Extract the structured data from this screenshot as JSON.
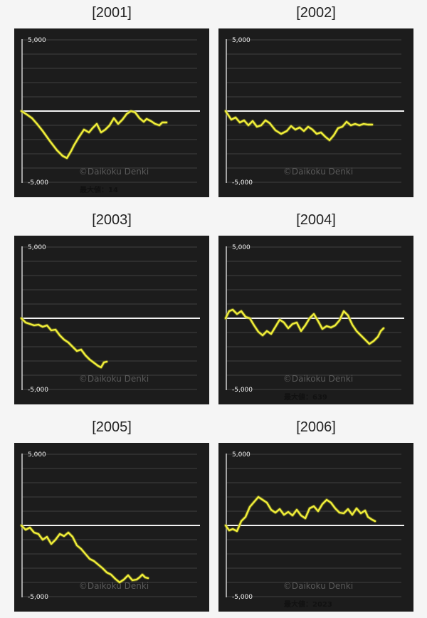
{
  "charts": [
    {
      "title": "[2001]",
      "ymax_label": "5,000",
      "ymin_label": "-5,000",
      "watermark": "©Daikoku Denki",
      "max_value_label": "最大値：14",
      "chart_data": {
        "type": "line",
        "ylim": [
          -5000,
          5000
        ],
        "baseline": 0,
        "x": [
          0,
          8,
          15,
          22,
          30,
          40,
          50,
          58,
          64,
          70,
          74,
          80,
          88,
          95,
          100,
          106,
          112,
          118,
          124,
          130,
          136,
          142,
          148,
          154,
          160,
          166,
          172,
          176,
          182,
          188,
          194,
          198,
          204
        ],
        "values": [
          0,
          -250,
          -500,
          -900,
          -1400,
          -2100,
          -2750,
          -3150,
          -3300,
          -2800,
          -2400,
          -1900,
          -1300,
          -1500,
          -1200,
          -900,
          -1500,
          -1300,
          -1000,
          -500,
          -900,
          -600,
          -200,
          0,
          -100,
          -500,
          -750,
          -550,
          -700,
          -900,
          -1000,
          -800,
          -800
        ]
      }
    },
    {
      "title": "[2002]",
      "ymax_label": "5,000",
      "ymin_label": "-5,000",
      "watermark": "©Daikoku Denki",
      "max_value_label": "",
      "chart_data": {
        "type": "line",
        "ylim": [
          -5000,
          5000
        ],
        "baseline": 0,
        "x": [
          0,
          8,
          14,
          20,
          26,
          32,
          38,
          44,
          50,
          56,
          62,
          70,
          78,
          86,
          92,
          98,
          104,
          110,
          116,
          122,
          128,
          134,
          140,
          146,
          152,
          158,
          164,
          170,
          176,
          182,
          188,
          194,
          200,
          206
        ],
        "values": [
          0,
          -600,
          -450,
          -800,
          -650,
          -1000,
          -700,
          -1100,
          -1000,
          -650,
          -850,
          -1350,
          -1600,
          -1400,
          -1050,
          -1300,
          -1150,
          -1400,
          -1100,
          -1300,
          -1600,
          -1500,
          -1800,
          -2050,
          -1700,
          -1200,
          -1100,
          -750,
          -1000,
          -900,
          -1000,
          -900,
          -950,
          -950
        ]
      }
    },
    {
      "title": "[2003]",
      "ymax_label": "5,000",
      "ymin_label": "-5,000",
      "watermark": "©Daikoku Denki",
      "max_value_label": "",
      "chart_data": {
        "type": "line",
        "ylim": [
          -5000,
          5000
        ],
        "baseline": 0,
        "x": [
          0,
          6,
          12,
          18,
          24,
          30,
          36,
          42,
          48,
          54,
          60,
          66,
          72,
          78,
          84,
          90,
          96,
          100,
          104,
          108,
          112,
          116,
          120
        ],
        "values": [
          0,
          -300,
          -400,
          -500,
          -450,
          -600,
          -500,
          -850,
          -800,
          -1200,
          -1500,
          -1700,
          -2000,
          -2300,
          -2200,
          -2600,
          -2900,
          -3050,
          -3200,
          -3350,
          -3450,
          -3100,
          -3050
        ]
      }
    },
    {
      "title": "[2004]",
      "ymax_label": "5,000",
      "ymin_label": "-5,000",
      "watermark": "©Daikoku Denki",
      "max_value_label": "最大値：639",
      "chart_data": {
        "type": "line",
        "ylim": [
          -5000,
          5000
        ],
        "baseline": 0,
        "x": [
          0,
          5,
          10,
          16,
          22,
          28,
          34,
          40,
          46,
          52,
          58,
          64,
          70,
          76,
          82,
          88,
          94,
          100,
          106,
          112,
          118,
          124,
          130,
          136,
          142,
          148,
          154,
          160,
          166,
          172,
          178,
          184,
          190,
          196,
          202,
          208,
          214,
          218,
          222
        ],
        "values": [
          0,
          500,
          600,
          300,
          500,
          100,
          0,
          -500,
          -950,
          -1200,
          -900,
          -1100,
          -600,
          -100,
          -300,
          -700,
          -400,
          -300,
          -900,
          -500,
          0,
          300,
          -200,
          -750,
          -550,
          -650,
          -500,
          -150,
          500,
          200,
          -450,
          -900,
          -1200,
          -1500,
          -1800,
          -1600,
          -1300,
          -900,
          -700
        ]
      }
    },
    {
      "title": "[2005]",
      "ymax_label": "5,000",
      "ymin_label": "-5,000",
      "watermark": "©Daikoku Denki",
      "max_value_label": "",
      "chart_data": {
        "type": "line",
        "ylim": [
          -5000,
          5000
        ],
        "baseline": 0,
        "x": [
          0,
          6,
          12,
          18,
          24,
          30,
          36,
          42,
          48,
          54,
          60,
          66,
          72,
          78,
          84,
          90,
          96,
          102,
          108,
          114,
          120,
          126,
          132,
          138,
          144,
          150,
          156,
          162,
          166,
          170,
          174,
          178
        ],
        "values": [
          0,
          -300,
          -150,
          -500,
          -600,
          -1000,
          -800,
          -1300,
          -1000,
          -600,
          -750,
          -500,
          -800,
          -1400,
          -1650,
          -2000,
          -2350,
          -2500,
          -2750,
          -3000,
          -3300,
          -3450,
          -3750,
          -4000,
          -3800,
          -3500,
          -3850,
          -3800,
          -3650,
          -3450,
          -3650,
          -3700
        ]
      }
    },
    {
      "title": "[2006]",
      "ymax_label": "5,000",
      "ymin_label": "-5,000",
      "watermark": "©Daikoku Denki",
      "max_value_label": "最大値：2023",
      "chart_data": {
        "type": "line",
        "ylim": [
          -5000,
          5000
        ],
        "baseline": 0,
        "x": [
          0,
          5,
          10,
          16,
          22,
          28,
          34,
          40,
          46,
          52,
          58,
          64,
          70,
          76,
          82,
          88,
          94,
          100,
          106,
          112,
          118,
          124,
          130,
          136,
          142,
          148,
          154,
          160,
          166,
          172,
          178,
          184,
          190,
          196,
          200,
          206,
          210
        ],
        "values": [
          0,
          -350,
          -250,
          -400,
          300,
          600,
          1300,
          1650,
          2000,
          1800,
          1600,
          1100,
          900,
          1150,
          750,
          950,
          700,
          1100,
          700,
          500,
          1200,
          1350,
          1000,
          1500,
          1800,
          1600,
          1200,
          900,
          850,
          1150,
          750,
          1200,
          850,
          1050,
          600,
          400,
          300
        ]
      }
    }
  ]
}
